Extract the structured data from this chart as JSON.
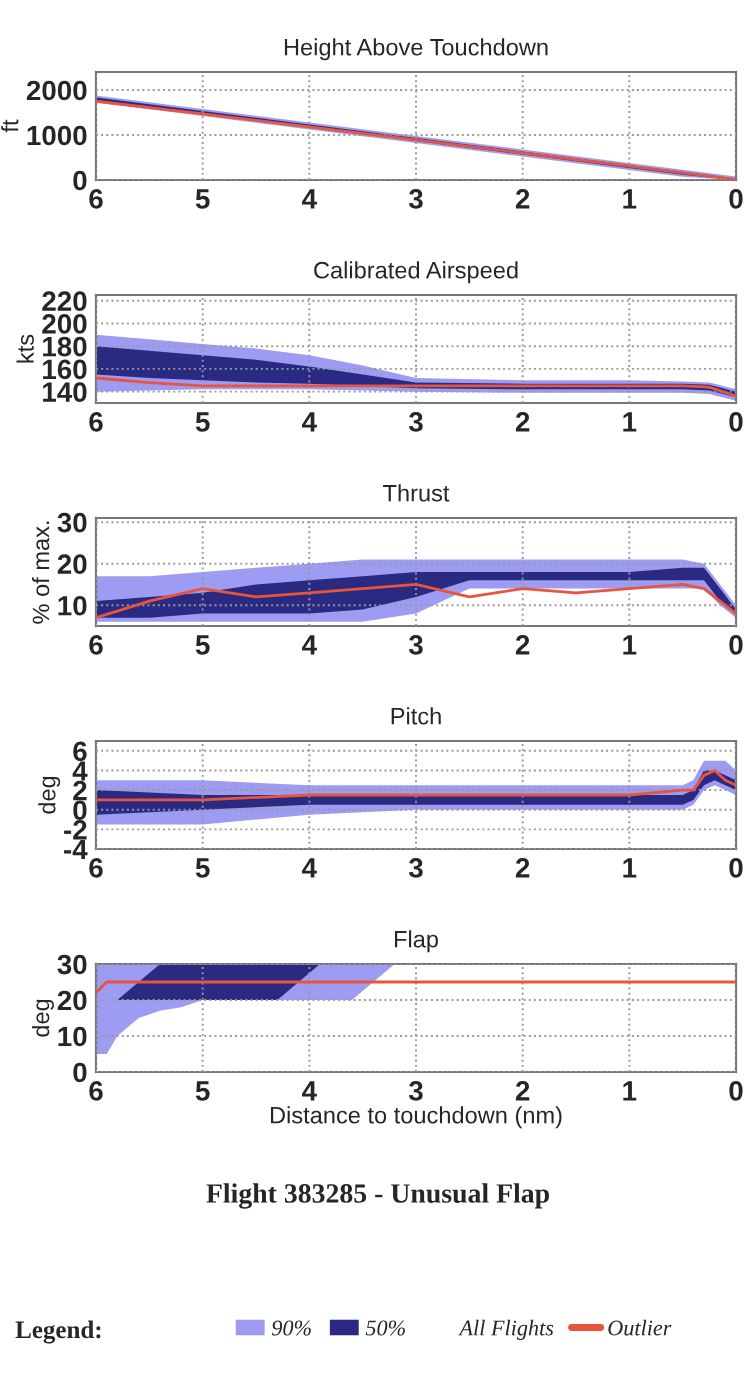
{
  "chart_data": [
    {
      "type": "line",
      "title": "Height Above Touchdown",
      "ylabel": "ft",
      "x": [
        6,
        5,
        4,
        3,
        2,
        1,
        0.5,
        0
      ],
      "xlim": [
        6,
        0
      ],
      "xticks": [
        6,
        5,
        4,
        3,
        2,
        1,
        0
      ],
      "ylim": [
        0,
        2400
      ],
      "yticks": [
        0,
        1000,
        2000
      ],
      "grid": true,
      "series": [
        {
          "color": "#9d9cf2",
          "values": [
            null,
            null,
            null,
            null,
            null,
            null,
            null,
            null
          ],
          "lower": [
            1720,
            1420,
            1120,
            820,
            520,
            220,
            70,
            0
          ],
          "upper": [
            1880,
            1580,
            1280,
            980,
            680,
            380,
            230,
            80
          ]
        },
        {
          "color": "#2b2a82",
          "values": [
            null,
            null,
            null,
            null,
            null,
            null,
            null,
            null
          ],
          "lower": [
            1765,
            1465,
            1165,
            865,
            565,
            265,
            115,
            0
          ],
          "upper": [
            1835,
            1535,
            1235,
            935,
            635,
            335,
            185,
            35
          ]
        },
        {
          "color": "#e8553a",
          "values": [
            1750,
            1470,
            1180,
            890,
            600,
            310,
            160,
            10
          ]
        }
      ]
    },
    {
      "type": "line",
      "title": "Calibrated Airspeed",
      "ylabel": "kts",
      "x": [
        6,
        5.5,
        5,
        4.5,
        4,
        3.5,
        3,
        2,
        1,
        0.5,
        0.25,
        0
      ],
      "xlim": [
        6,
        0
      ],
      "xticks": [
        6,
        5,
        4,
        3,
        2,
        1,
        0
      ],
      "ylim": [
        130,
        225
      ],
      "yticks": [
        140,
        160,
        180,
        200,
        220
      ],
      "grid": true,
      "series": [
        {
          "color": "#9d9cf2",
          "values": [
            null,
            null,
            null,
            null,
            null,
            null,
            null,
            null,
            null,
            null,
            null,
            null
          ],
          "lower": [
            140,
            141,
            142,
            142,
            142,
            141,
            140,
            139,
            139,
            139,
            138,
            132
          ],
          "upper": [
            190,
            186,
            182,
            178,
            172,
            163,
            152,
            150,
            150,
            149,
            148,
            142
          ]
        },
        {
          "color": "#2b2a82",
          "values": [
            null,
            null,
            null,
            null,
            null,
            null,
            null,
            null,
            null,
            null,
            null,
            null
          ],
          "lower": [
            155,
            152,
            150,
            148,
            147,
            145,
            143,
            142,
            142,
            142,
            141,
            135
          ],
          "upper": [
            180,
            176,
            172,
            168,
            162,
            155,
            148,
            147,
            147,
            147,
            146,
            140
          ]
        },
        {
          "color": "#e8553a",
          "values": [
            152,
            148,
            145,
            145,
            145,
            145,
            145,
            145,
            145,
            145,
            144,
            136
          ]
        }
      ]
    },
    {
      "type": "line",
      "title": "Thrust",
      "ylabel": "% of max.",
      "x": [
        6,
        5.5,
        5,
        4.5,
        4,
        3.5,
        3,
        2.5,
        2,
        1.5,
        1,
        0.5,
        0.3,
        0.15,
        0
      ],
      "xlim": [
        6,
        0
      ],
      "xticks": [
        6,
        5,
        4,
        3,
        2,
        1,
        0
      ],
      "ylim": [
        5,
        31
      ],
      "yticks": [
        10,
        20,
        30
      ],
      "grid": true,
      "series": [
        {
          "color": "#9d9cf2",
          "values": [
            null,
            null,
            null,
            null,
            null,
            null,
            null,
            null,
            null,
            null,
            null,
            null,
            null,
            null,
            null
          ],
          "lower": [
            6,
            6,
            6,
            6,
            6,
            6,
            8,
            14,
            14,
            14,
            14,
            14,
            14,
            10,
            7
          ],
          "upper": [
            17,
            17,
            18,
            19,
            20,
            21,
            21,
            21,
            21,
            21,
            21,
            21,
            20,
            15,
            10
          ]
        },
        {
          "color": "#2b2a82",
          "values": [
            null,
            null,
            null,
            null,
            null,
            null,
            null,
            null,
            null,
            null,
            null,
            null,
            null,
            null,
            null
          ],
          "lower": [
            7,
            7,
            8,
            8,
            8,
            9,
            12,
            16,
            16,
            16,
            16,
            16,
            16,
            11,
            8
          ],
          "upper": [
            11,
            12,
            13,
            15,
            16,
            17,
            18,
            18,
            18,
            18,
            18,
            19,
            19,
            14,
            9
          ]
        },
        {
          "color": "#e8553a",
          "values": [
            7,
            11,
            14,
            12,
            13,
            14,
            15,
            12,
            14,
            13,
            14,
            15,
            14,
            11,
            8
          ]
        }
      ]
    },
    {
      "type": "line",
      "title": "Pitch",
      "ylabel": "deg",
      "x": [
        6,
        5,
        4,
        3,
        2,
        1,
        0.5,
        0.4,
        0.3,
        0.2,
        0.1,
        0
      ],
      "xlim": [
        6,
        0
      ],
      "xticks": [
        6,
        5,
        4,
        3,
        2,
        1,
        0
      ],
      "ylim": [
        -4,
        7
      ],
      "yticks": [
        -4,
        -2,
        0,
        2,
        4,
        6
      ],
      "grid": true,
      "series": [
        {
          "color": "#9d9cf2",
          "values": [
            null,
            null,
            null,
            null,
            null,
            null,
            null,
            null,
            null,
            null,
            null,
            null
          ],
          "lower": [
            -1.5,
            -1.5,
            -0.5,
            0,
            0,
            0,
            0,
            0.5,
            2,
            2.5,
            2,
            1.5
          ],
          "upper": [
            3,
            3,
            2.5,
            2.5,
            2.5,
            2.5,
            2.5,
            3,
            5,
            5,
            5,
            4
          ]
        },
        {
          "color": "#2b2a82",
          "values": [
            null,
            null,
            null,
            null,
            null,
            null,
            null,
            null,
            null,
            null,
            null,
            null
          ],
          "lower": [
            -0.5,
            0,
            0.5,
            0.5,
            0.5,
            0.5,
            0.5,
            1,
            2.5,
            3,
            2.5,
            2
          ],
          "upper": [
            2,
            1.5,
            1.5,
            1.5,
            1.5,
            1.5,
            1.5,
            2,
            4,
            4,
            3.5,
            3
          ]
        },
        {
          "color": "#e8553a",
          "values": [
            1,
            1,
            1.5,
            1.5,
            1.5,
            1.5,
            2,
            2,
            3.5,
            4,
            3,
            2.5
          ]
        }
      ]
    },
    {
      "type": "line",
      "title": "Flap",
      "ylabel": "deg",
      "xlabel": "Distance to touchdown (nm)",
      "x": [
        6,
        5.9,
        5.8,
        5.6,
        5.4,
        5.2,
        5,
        4.5,
        4.3,
        4.1,
        3.9,
        3.6,
        3.4,
        3.2,
        3,
        2,
        1,
        0
      ],
      "xlim": [
        6,
        0
      ],
      "xticks": [
        6,
        5,
        4,
        3,
        2,
        1,
        0
      ],
      "ylim": [
        0,
        30
      ],
      "yticks": [
        0,
        10,
        20,
        30
      ],
      "grid": true,
      "legend": "bottom",
      "legend_title": "Legend:",
      "annotations": [
        "Flight 383285 - Unusual Flap",
        "All Flights"
      ],
      "series": [
        {
          "name": "90%",
          "color": "#9d9cf2",
          "values": [
            null,
            null,
            null,
            null,
            null,
            null,
            null,
            null,
            null,
            null,
            null,
            null,
            null,
            null,
            null,
            null,
            null,
            null
          ],
          "lower": [
            5,
            5,
            10,
            15,
            17,
            18,
            20,
            20,
            20,
            20,
            20,
            20,
            25,
            30,
            30,
            30,
            30,
            30
          ],
          "upper": [
            30,
            30,
            30,
            30,
            30,
            30,
            30,
            30,
            30,
            30,
            30,
            30,
            30,
            30,
            30,
            30,
            30,
            30
          ]
        },
        {
          "name": "50%",
          "color": "#2b2a82",
          "values": [
            null,
            null,
            null,
            null,
            null,
            null,
            null,
            null,
            null,
            null,
            null,
            null,
            null,
            null,
            null,
            null,
            null,
            null
          ],
          "lower": [
            20,
            20,
            20,
            20,
            20,
            20,
            20,
            20,
            20,
            25,
            30,
            30,
            30,
            30,
            30,
            30,
            30,
            30
          ],
          "upper": [
            20,
            20,
            20,
            25,
            30,
            30,
            30,
            30,
            30,
            30,
            30,
            30,
            30,
            30,
            30,
            30,
            30,
            30
          ]
        },
        {
          "name": "Outlier",
          "color": "#e8553a",
          "values": [
            22,
            25,
            25,
            25,
            25,
            25,
            25,
            25,
            25,
            25,
            25,
            25,
            25,
            25,
            25,
            25,
            25,
            25
          ]
        }
      ]
    }
  ]
}
